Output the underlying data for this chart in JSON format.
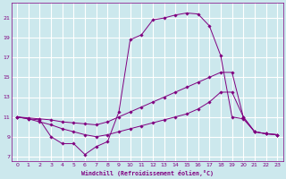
{
  "xlabel": "Windchill (Refroidissement éolien,°C)",
  "bg_color": "#cce8ed",
  "grid_color": "#ffffff",
  "line_color": "#800080",
  "xlim": [
    -0.5,
    23.5
  ],
  "ylim": [
    6.5,
    22.5
  ],
  "xticks": [
    0,
    1,
    2,
    3,
    4,
    5,
    6,
    7,
    8,
    9,
    10,
    11,
    12,
    13,
    14,
    15,
    16,
    17,
    18,
    19,
    20,
    21,
    22,
    23
  ],
  "yticks": [
    7,
    9,
    11,
    13,
    15,
    17,
    19,
    21
  ],
  "series1_x": [
    0,
    1,
    2,
    3,
    4,
    5,
    6,
    7,
    8,
    9,
    10,
    11,
    12,
    13,
    14,
    15,
    16,
    17,
    18,
    19,
    20,
    21,
    22,
    23
  ],
  "series1_y": [
    11.0,
    10.8,
    10.7,
    9.0,
    8.3,
    8.3,
    7.2,
    8.0,
    8.5,
    11.5,
    18.8,
    19.3,
    20.8,
    21.0,
    21.3,
    21.5,
    21.4,
    20.2,
    17.2,
    11.0,
    10.8,
    9.5,
    9.3,
    9.2
  ],
  "series2_x": [
    0,
    1,
    2,
    3,
    4,
    5,
    6,
    7,
    8,
    9,
    10,
    11,
    12,
    13,
    14,
    15,
    16,
    17,
    18,
    19,
    20,
    21,
    22,
    23
  ],
  "series2_y": [
    11.0,
    10.9,
    10.8,
    10.7,
    10.5,
    10.4,
    10.3,
    10.2,
    10.5,
    11.0,
    11.5,
    12.0,
    12.5,
    13.0,
    13.5,
    14.0,
    14.5,
    15.0,
    15.5,
    15.5,
    11.0,
    9.5,
    9.3,
    9.2
  ],
  "series3_x": [
    0,
    1,
    2,
    3,
    4,
    5,
    6,
    7,
    8,
    9,
    10,
    11,
    12,
    13,
    14,
    15,
    16,
    17,
    18,
    19,
    20,
    21,
    22,
    23
  ],
  "series3_y": [
    11.0,
    10.8,
    10.5,
    10.2,
    9.8,
    9.5,
    9.2,
    9.0,
    9.2,
    9.5,
    9.8,
    10.1,
    10.4,
    10.7,
    11.0,
    11.3,
    11.8,
    12.5,
    13.5,
    13.5,
    11.0,
    9.5,
    9.3,
    9.2
  ]
}
